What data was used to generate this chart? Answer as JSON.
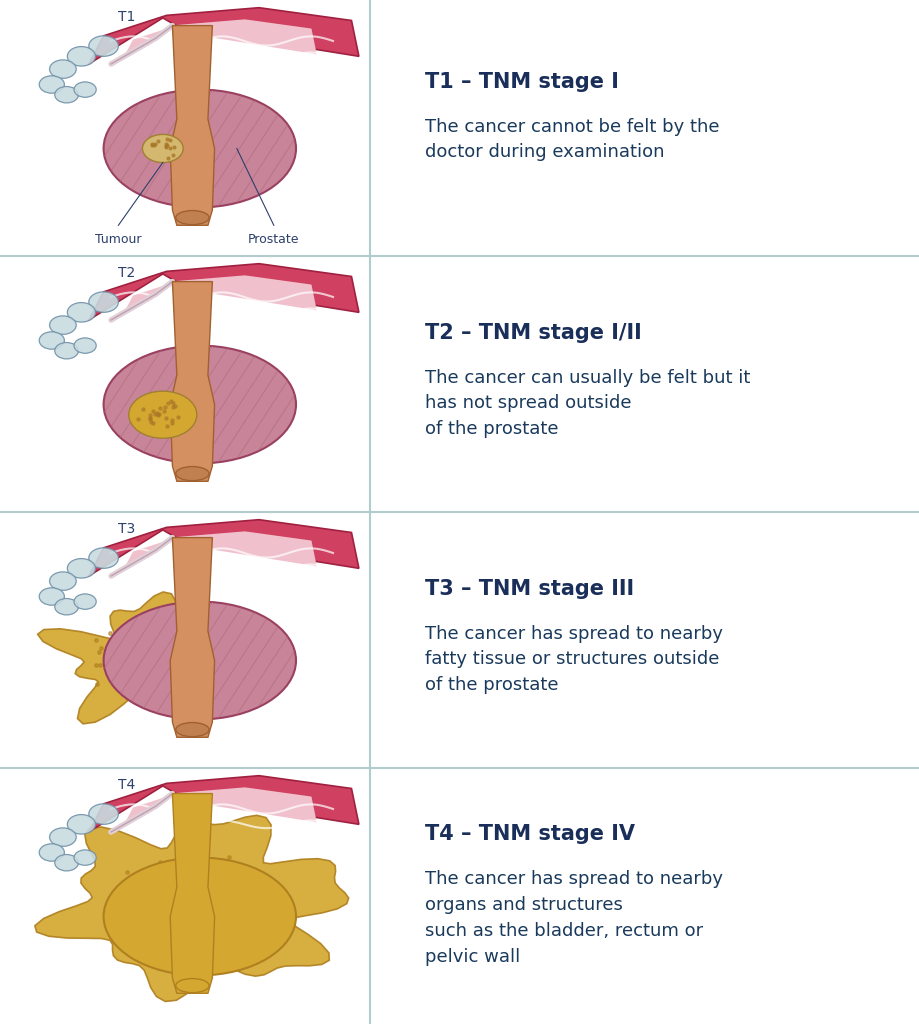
{
  "bg_white": "#FFFFFF",
  "bg_light": "#d5eaea",
  "divider_color": "#b0cccc",
  "title_color": "#1a2e5a",
  "body_color": "#1a3a5c",
  "label_color": "#2d3f6b",
  "stages": [
    {
      "id": "T1",
      "title": "T1 – TNM stage I",
      "body": "The cancer cannot be felt by the\ndoctor during examination",
      "bg": "#FFFFFF",
      "spread": "none"
    },
    {
      "id": "T2",
      "title": "T2 – TNM stage I/II",
      "body": "The cancer can usually be felt but it\nhas not spread outside\nof the prostate",
      "bg": "#d5eaea",
      "spread": "prostate"
    },
    {
      "id": "T3",
      "title": "T3 – TNM stage III",
      "body": "The cancer has spread to nearby\nfatty tissue or structures outside\nof the prostate",
      "bg": "#FFFFFF",
      "spread": "outside"
    },
    {
      "id": "T4",
      "title": "T4 – TNM stage IV",
      "body": "The cancer has spread to nearby\norgans and structures\nsuch as the bladder, rectum or\npelvic wall",
      "bg": "#d5eaea",
      "spread": "organs"
    }
  ],
  "prostate_fill": "#c8859a",
  "prostate_edge": "#9a4060",
  "prostate_stripe": "#b06878",
  "bladder_red": "#d04060",
  "bladder_red_edge": "#a02040",
  "bladder_pink": "#f0c0cc",
  "bladder_pink_edge": "#e09090",
  "tube_fill": "#d49060",
  "tube_edge": "#a06030",
  "tube_end_fill": "#c08050",
  "epi_fill": "#c8dce0",
  "epi_edge": "#7090a8",
  "duct_fill": "#e0d0d8",
  "duct_edge": "#c0a0b0",
  "tumour_small_fill": "#d4b870",
  "tumour_large_fill": "#d4a830",
  "tumour_edge": "#a08030",
  "spread_fill": "#d4a830",
  "spread_edge": "#b08020",
  "title_fontsize": 15,
  "body_fontsize": 13,
  "id_fontsize": 10,
  "label_fontsize": 9
}
